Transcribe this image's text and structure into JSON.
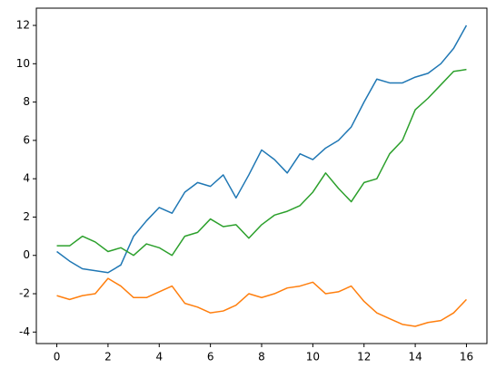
{
  "chart_data": {
    "type": "line",
    "x": [
      0,
      0.5,
      1,
      1.5,
      2,
      2.5,
      3,
      3.5,
      4,
      4.5,
      5,
      5.5,
      6,
      6.5,
      7,
      7.5,
      8,
      8.5,
      9,
      9.5,
      10,
      10.5,
      11,
      11.5,
      12,
      12.5,
      13,
      13.5,
      14,
      14.5,
      15,
      15.5,
      16
    ],
    "series": [
      {
        "color": "#1f77b4",
        "values": [
          0.2,
          -0.3,
          -0.7,
          -0.8,
          -0.9,
          -0.5,
          1.0,
          1.8,
          2.5,
          2.2,
          3.3,
          3.8,
          3.6,
          4.2,
          3.0,
          4.2,
          5.5,
          5.0,
          4.3,
          5.3,
          5.0,
          5.6,
          6.0,
          6.7,
          8.0,
          9.2,
          9.0,
          9.0,
          9.3,
          9.5,
          10.0,
          10.8,
          12.0
        ]
      },
      {
        "color": "#ff7f0e",
        "values": [
          -2.1,
          -2.3,
          -2.1,
          -2.0,
          -1.2,
          -1.6,
          -2.2,
          -2.2,
          -1.9,
          -1.6,
          -2.5,
          -2.7,
          -3.0,
          -2.9,
          -2.6,
          -2.0,
          -2.2,
          -2.0,
          -1.7,
          -1.6,
          -1.4,
          -2.0,
          -1.9,
          -1.6,
          -2.4,
          -3.0,
          -3.3,
          -3.6,
          -3.7,
          -3.5,
          -3.4,
          -3.0,
          -2.3
        ]
      },
      {
        "color": "#2ca02c",
        "values": [
          0.5,
          0.5,
          1.0,
          0.7,
          0.2,
          0.4,
          0.0,
          0.6,
          0.4,
          0.0,
          1.0,
          1.2,
          1.9,
          1.5,
          1.6,
          0.9,
          1.6,
          2.1,
          2.3,
          2.6,
          3.3,
          4.3,
          3.5,
          2.8,
          3.8,
          4.0,
          5.3,
          6.0,
          7.6,
          8.2,
          8.9,
          9.6,
          9.7
        ]
      }
    ],
    "xlim": [
      -0.8,
      16.8
    ],
    "ylim": [
      -4.6,
      12.9
    ],
    "xticks": [
      0,
      2,
      4,
      6,
      8,
      10,
      12,
      14,
      16
    ],
    "yticks": [
      -4,
      -2,
      0,
      2,
      4,
      6,
      8,
      10,
      12
    ],
    "grid": false
  }
}
